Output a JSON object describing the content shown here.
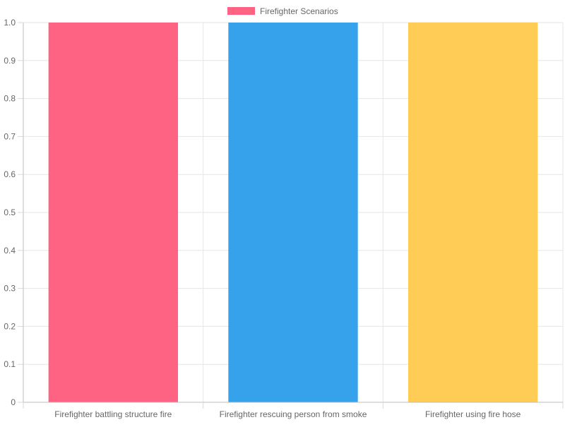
{
  "chart_data": {
    "type": "bar",
    "categories": [
      "Firefighter battling structure fire",
      "Firefighter rescuing person from smoke",
      "Firefighter using fire hose"
    ],
    "series": [
      {
        "name": "Firefighter Scenarios",
        "values": [
          1,
          1,
          1
        ],
        "colors": [
          "#ff6384",
          "#36a2eb",
          "#ffcd56"
        ]
      }
    ],
    "legend": {
      "label": "Firefighter Scenarios",
      "swatch_color": "#ff6384",
      "placement": "top"
    },
    "ylim": [
      0,
      1
    ],
    "y_ticks": [
      "0",
      "0.1",
      "0.2",
      "0.3",
      "0.4",
      "0.5",
      "0.6",
      "0.7",
      "0.8",
      "0.9",
      "1.0"
    ],
    "grid": true,
    "title": "",
    "xlabel": "",
    "ylabel": ""
  }
}
